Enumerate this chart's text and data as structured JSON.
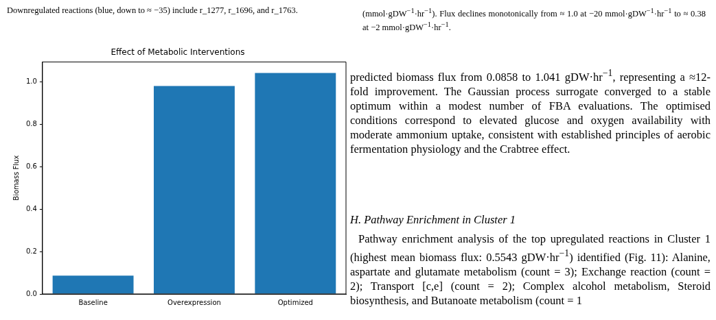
{
  "chart_data": {
    "type": "bar",
    "title": "Effect of Metabolic Interventions",
    "ylabel": "Biomass Flux",
    "categories": [
      "Baseline",
      "Overexpression",
      "Optimized"
    ],
    "values": [
      0.086,
      0.98,
      1.041
    ],
    "color": "#1f77b4",
    "ylim": [
      0,
      1.093
    ],
    "yticks": [
      {
        "value": 0,
        "label": "0.0"
      },
      {
        "value": 0.2,
        "label": "0.2"
      },
      {
        "value": 0.4,
        "label": "0.4"
      },
      {
        "value": 0.6,
        "label": "0.6"
      },
      {
        "value": 0.8,
        "label": "0.8"
      },
      {
        "value": 1.0,
        "label": "1.0"
      }
    ],
    "grid": false,
    "legend": false,
    "annotations": [
      "Downregulated reactions (blue, down to ≈ −35) include r_1277, r_1696, and r_1763.",
      "(mmol·gDW$^{−1}$·hr$^{−1}$). Flux declines monotonically from ≈ 1.0 at −20 mmol·gDW$^{−1}$·hr$^{−1}$ to ≈ 0.38 at −2 mmol·gDW$^{−1}$·hr$^{−1}$.",
      "predicted biomass flux from 0.0858 to 1.041 gDW·hr$^{−1}$, representing a ≈12-fold improvement. The Gaussian process surrogate converged to a stable optimum within a modest number of FBA evaluations. The optimised conditions correspond to elevated glucose and oxygen availability with moderate ammonium uptake, consistent with established principles of aerobic fermentation physiology and the Crabtree effect.",
      "H. Pathway Enrichment in Cluster 1",
      "Pathway enrichment analysis of the top upregulated reactions in Cluster 1 (highest mean biomass flux: 0.5543 gDW·hr$^{−1}$) identified (Fig. 11): Alanine, aspartate and glutamate metabolism (count = 3); Exchange reaction (count = 2); Transport [c,e] (count = 2); Complex alcohol metabolism, Steroid biosynthesis, and Butanoate metabolism (count = 1"
    ]
  }
}
